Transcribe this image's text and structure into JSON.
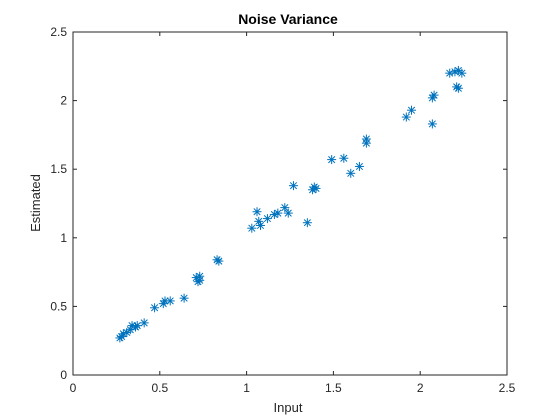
{
  "chart_data": {
    "type": "scatter",
    "title": "Noise Variance",
    "xlabel": "Input",
    "ylabel": "Estimated",
    "xlim": [
      0,
      2.5
    ],
    "ylim": [
      0,
      2.5
    ],
    "xticks": [
      "0",
      "0.5",
      "1",
      "1.5",
      "2",
      "2.5"
    ],
    "yticks": [
      "0",
      "0.5",
      "1",
      "1.5",
      "2",
      "2.5"
    ],
    "grid": false,
    "legend": "none",
    "marker": "asterisk",
    "colors": {
      "marker": "#0072BD",
      "axis": "#262626",
      "title": "#000000"
    },
    "points": [
      {
        "x": 0.27,
        "y": 0.27
      },
      {
        "x": 0.28,
        "y": 0.28
      },
      {
        "x": 0.29,
        "y": 0.3
      },
      {
        "x": 0.31,
        "y": 0.31
      },
      {
        "x": 0.33,
        "y": 0.33
      },
      {
        "x": 0.34,
        "y": 0.36
      },
      {
        "x": 0.36,
        "y": 0.35
      },
      {
        "x": 0.37,
        "y": 0.36
      },
      {
        "x": 0.41,
        "y": 0.38
      },
      {
        "x": 0.47,
        "y": 0.49
      },
      {
        "x": 0.52,
        "y": 0.52
      },
      {
        "x": 0.53,
        "y": 0.54
      },
      {
        "x": 0.56,
        "y": 0.54
      },
      {
        "x": 0.64,
        "y": 0.56
      },
      {
        "x": 0.71,
        "y": 0.71
      },
      {
        "x": 0.72,
        "y": 0.68
      },
      {
        "x": 0.73,
        "y": 0.72
      },
      {
        "x": 0.73,
        "y": 0.69
      },
      {
        "x": 0.84,
        "y": 0.83
      },
      {
        "x": 0.83,
        "y": 0.84
      },
      {
        "x": 1.03,
        "y": 1.07
      },
      {
        "x": 1.06,
        "y": 1.19
      },
      {
        "x": 1.07,
        "y": 1.12
      },
      {
        "x": 1.08,
        "y": 1.09
      },
      {
        "x": 1.12,
        "y": 1.14
      },
      {
        "x": 1.16,
        "y": 1.17
      },
      {
        "x": 1.18,
        "y": 1.18
      },
      {
        "x": 1.22,
        "y": 1.22
      },
      {
        "x": 1.24,
        "y": 1.18
      },
      {
        "x": 1.27,
        "y": 1.38
      },
      {
        "x": 1.35,
        "y": 1.11
      },
      {
        "x": 1.38,
        "y": 1.35
      },
      {
        "x": 1.39,
        "y": 1.37
      },
      {
        "x": 1.4,
        "y": 1.36
      },
      {
        "x": 1.49,
        "y": 1.57
      },
      {
        "x": 1.56,
        "y": 1.58
      },
      {
        "x": 1.6,
        "y": 1.47
      },
      {
        "x": 1.65,
        "y": 1.52
      },
      {
        "x": 1.69,
        "y": 1.69
      },
      {
        "x": 1.69,
        "y": 1.72
      },
      {
        "x": 1.92,
        "y": 1.88
      },
      {
        "x": 1.95,
        "y": 1.93
      },
      {
        "x": 2.07,
        "y": 1.83
      },
      {
        "x": 2.07,
        "y": 2.02
      },
      {
        "x": 2.08,
        "y": 2.04
      },
      {
        "x": 2.17,
        "y": 2.2
      },
      {
        "x": 2.2,
        "y": 2.21
      },
      {
        "x": 2.21,
        "y": 2.1
      },
      {
        "x": 2.22,
        "y": 2.09
      },
      {
        "x": 2.22,
        "y": 2.22
      },
      {
        "x": 2.24,
        "y": 2.2
      }
    ]
  }
}
